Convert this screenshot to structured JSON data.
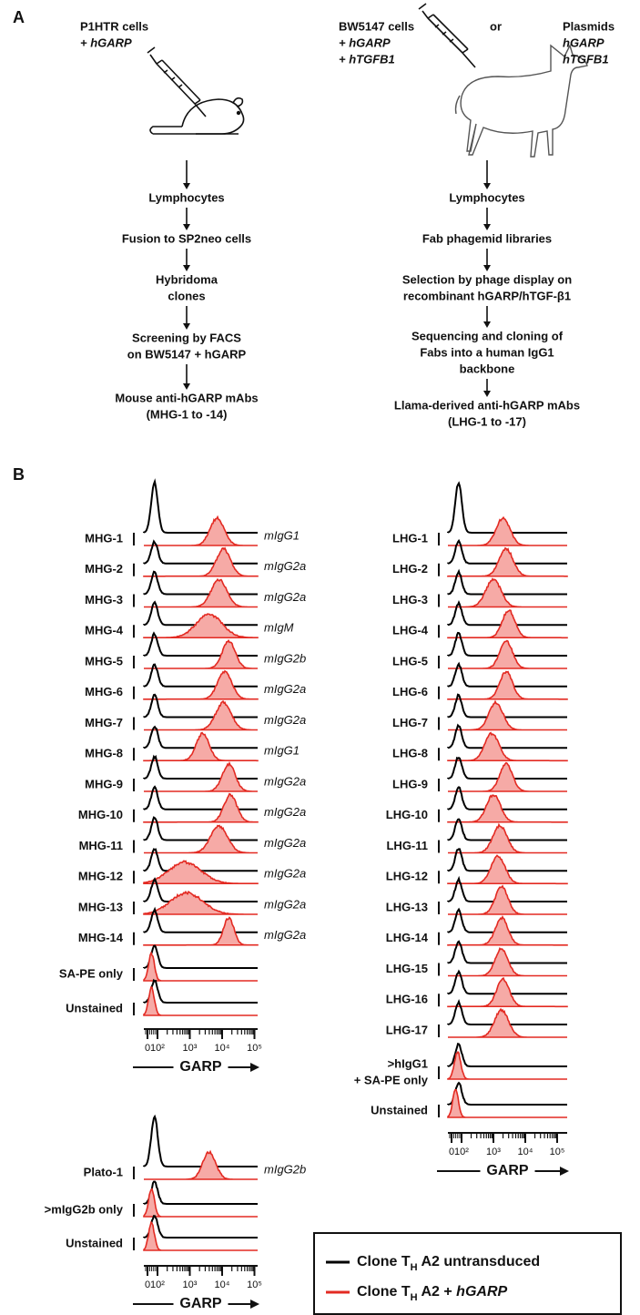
{
  "panel_a": {
    "label": "A",
    "mouse": {
      "immunogen": [
        "P1HTR cells",
        "+ hGARP"
      ],
      "steps": [
        [
          "Lymphocytes"
        ],
        [
          "Fusion to SP2neo cells"
        ],
        [
          "Hybridoma",
          "clones"
        ],
        [
          "Screening by FACS",
          "on BW5147 + hGARP"
        ],
        [
          "Mouse anti-hGARP mAbs",
          "(MHG-1 to -14)"
        ]
      ]
    },
    "llama": {
      "immunogen": [
        "BW5147 cells",
        "+ hGARP",
        "+ hTGFB1"
      ],
      "or": "or",
      "alt_immunogen": [
        "Plasmids",
        "hGARP",
        "hTGFB1"
      ],
      "steps": [
        [
          "Lymphocytes"
        ],
        [
          "Fab phagemid libraries"
        ],
        [
          "Selection by phage display on",
          "recombinant hGARP/hTGF-β1"
        ],
        [
          "Sequencing and cloning of",
          "Fabs into a human IgG1",
          "backbone"
        ],
        [
          "Llama-derived anti-hGARP mAbs",
          "(LHG-1 to -17)"
        ]
      ]
    }
  },
  "panel_b": {
    "label": "B",
    "axis_label": "GARP",
    "xticks": [
      0,
      {
        "value": 100,
        "label": "10²"
      },
      {
        "value": 1000,
        "label": "10³"
      },
      {
        "value": 10000,
        "label": "10⁴"
      },
      {
        "value": 100000,
        "label": "10⁵"
      }
    ],
    "panels": [
      {
        "untransduced_peak": 70,
        "rows": [
          {
            "label": "MHG-1",
            "isotype": "mIgG1",
            "peak": 7000,
            "spread": 0.22
          },
          {
            "label": "MHG-2",
            "isotype": "mIgG2a",
            "peak": 11000,
            "spread": 0.22
          },
          {
            "label": "MHG-3",
            "isotype": "mIgG2a",
            "peak": 8000,
            "spread": 0.24
          },
          {
            "label": "MHG-4",
            "isotype": "mIgM",
            "peak": 4000,
            "spread": 0.4
          },
          {
            "label": "MHG-5",
            "isotype": "mIgG2b",
            "peak": 16000,
            "spread": 0.2
          },
          {
            "label": "MHG-6",
            "isotype": "mIgG2a",
            "peak": 12000,
            "spread": 0.22
          },
          {
            "label": "MHG-7",
            "isotype": "mIgG2a",
            "peak": 11000,
            "spread": 0.24
          },
          {
            "label": "MHG-8",
            "isotype": "mIgG1",
            "peak": 2500,
            "spread": 0.2
          },
          {
            "label": "MHG-9",
            "isotype": "mIgG2a",
            "peak": 16000,
            "spread": 0.2
          },
          {
            "label": "MHG-10",
            "isotype": "mIgG2a",
            "peak": 18000,
            "spread": 0.2
          },
          {
            "label": "MHG-11",
            "isotype": "mIgG2a",
            "peak": 8000,
            "spread": 0.26
          },
          {
            "label": "MHG-12",
            "isotype": "mIgG2a",
            "peak": 700,
            "spread": 0.5
          },
          {
            "label": "MHG-13",
            "isotype": "mIgG2a",
            "peak": 800,
            "spread": 0.5
          },
          {
            "label": "MHG-14",
            "isotype": "mIgG2a",
            "peak": 16000,
            "spread": 0.16
          },
          {
            "label": "SA-PE only",
            "peak": 40,
            "spread": 0.09
          },
          {
            "label": "Unstained",
            "peak": 40,
            "spread": 0.09
          }
        ]
      },
      {
        "untransduced_peak": 70,
        "rows": [
          {
            "label": "LHG-1",
            "peak": 2000,
            "spread": 0.22
          },
          {
            "label": "LHG-2",
            "peak": 2500,
            "spread": 0.22
          },
          {
            "label": "LHG-3",
            "peak": 1000,
            "spread": 0.24
          },
          {
            "label": "LHG-4",
            "peak": 3000,
            "spread": 0.2
          },
          {
            "label": "LHG-5",
            "peak": 2500,
            "spread": 0.2
          },
          {
            "label": "LHG-6",
            "peak": 2500,
            "spread": 0.2
          },
          {
            "label": "LHG-7",
            "peak": 1200,
            "spread": 0.22
          },
          {
            "label": "LHG-8",
            "peak": 900,
            "spread": 0.22
          },
          {
            "label": "LHG-9",
            "peak": 2500,
            "spread": 0.2
          },
          {
            "label": "LHG-10",
            "peak": 1000,
            "spread": 0.22
          },
          {
            "label": "LHG-11",
            "peak": 1600,
            "spread": 0.22
          },
          {
            "label": "LHG-12",
            "peak": 1400,
            "spread": 0.22
          },
          {
            "label": "LHG-13",
            "peak": 1800,
            "spread": 0.2
          },
          {
            "label": "LHG-14",
            "peak": 1800,
            "spread": 0.2
          },
          {
            "label": "LHG-15",
            "peak": 1800,
            "spread": 0.2
          },
          {
            "label": "LHG-16",
            "peak": 2000,
            "spread": 0.2
          },
          {
            "label": "LHG-17",
            "peak": 1800,
            "spread": 0.22
          },
          {
            "label": [
              ">hIgG1",
              "+ SA-PE only"
            ],
            "peak": 60,
            "spread": 0.1
          },
          {
            "label": "Unstained",
            "peak": 40,
            "spread": 0.09
          }
        ]
      },
      {
        "untransduced_peak": 70,
        "rows": [
          {
            "label": "Plato-1",
            "isotype": "mIgG2b",
            "peak": 4000,
            "spread": 0.2
          },
          {
            "label": ">mIgG2b only",
            "peak": 40,
            "spread": 0.09
          },
          {
            "label": "Unstained",
            "peak": 40,
            "spread": 0.09
          }
        ]
      }
    ]
  },
  "legend": {
    "colors": [
      "#000000",
      "#e32a22"
    ],
    "entries": [
      {
        "parts": [
          "Clone T",
          "H",
          " A2 untransduced"
        ]
      },
      {
        "parts": [
          "Clone T",
          "H",
          " A2 + ",
          "hGARP"
        ]
      }
    ]
  }
}
